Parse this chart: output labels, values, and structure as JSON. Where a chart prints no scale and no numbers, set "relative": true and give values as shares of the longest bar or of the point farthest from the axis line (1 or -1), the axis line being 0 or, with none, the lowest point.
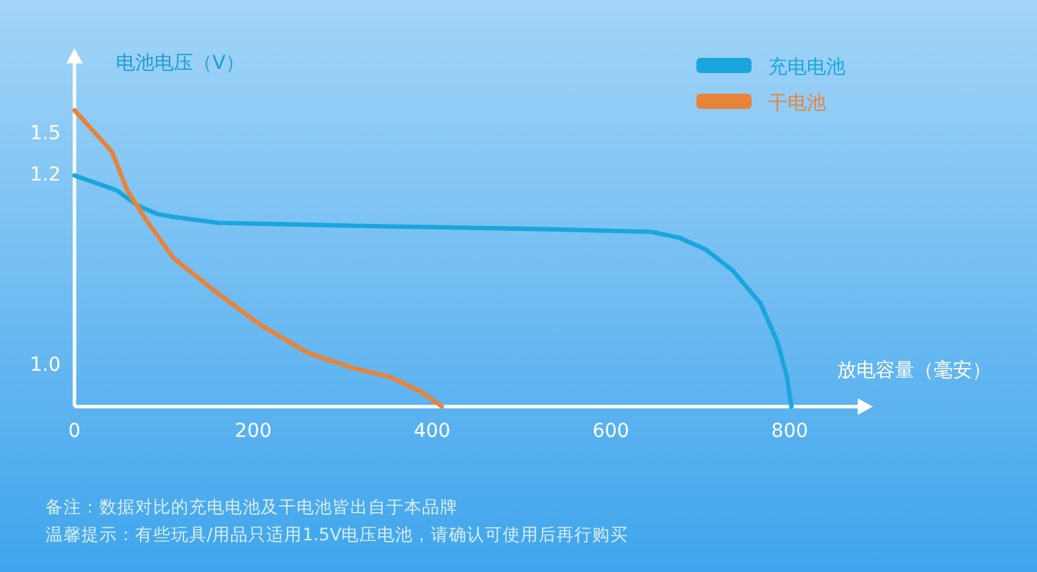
{
  "chart_data": {
    "type": "line",
    "xlabel": "放电容量（毫安）",
    "ylabel": "电池电压（V）",
    "relative": true,
    "xlim": [
      0,
      890
    ],
    "xticks": [
      0,
      200,
      400,
      600,
      800
    ],
    "series": [
      {
        "name": "充电电池",
        "color": "#1aa6dc",
        "x": [
          0,
          47,
          70,
          92,
          111,
          161,
          312,
          509,
          645,
          676,
          706,
          736,
          767,
          786,
          797,
          802
        ],
        "values": [
          0.78,
          0.73,
          0.68,
          0.65,
          0.64,
          0.62,
          0.61,
          0.6,
          0.59,
          0.57,
          0.53,
          0.46,
          0.35,
          0.22,
          0.1,
          0
        ]
      },
      {
        "name": "干电池",
        "color": "#e8833a",
        "x": [
          0,
          42,
          59,
          80,
          111,
          161,
          211,
          262,
          312,
          353,
          388,
          411
        ],
        "values": [
          1.0,
          0.86,
          0.73,
          0.63,
          0.5,
          0.38,
          0.27,
          0.18,
          0.13,
          0.1,
          0.05,
          0
        ]
      }
    ],
    "legend": "top right",
    "line_style": "solid",
    "annotations": [
      "1.5",
      "1.2",
      "1.0",
      "备注：数据对比的充电电池及干电池皆出自于本品牌",
      "温馨提示：有些玩具/用品只适用1.5V电压电池，请确认可使用后再行购买"
    ]
  }
}
